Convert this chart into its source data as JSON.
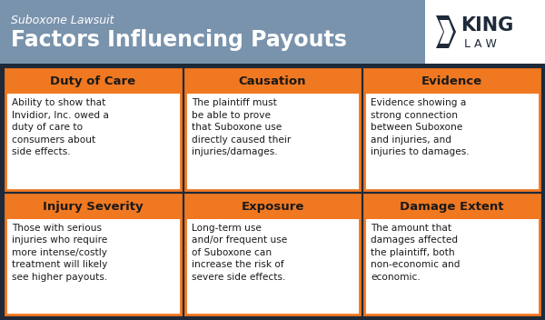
{
  "title_line1": "Suboxone Lawsuit",
  "title_line2": "Factors Influencing Payouts",
  "header_bg": "#7a93ad",
  "logo_bg": "#ffffff",
  "body_bg": "#1e2a3a",
  "card_bg": "#ffffff",
  "orange": "#f07820",
  "card_border": "#f07820",
  "title_color": "#ffffff",
  "card_title_color": "#1a1a1a",
  "card_text_color": "#1a1a1a",
  "logo_text_color": "#1e2a3a",
  "cells": [
    {
      "title": "Duty of Care",
      "text": "Ability to show that\nInvidior, Inc. owed a\nduty of care to\nconsumers about\nside effects."
    },
    {
      "title": "Causation",
      "text": "The plaintiff must\nbe able to prove\nthat Suboxone use\ndirectly caused their\ninjuries/damages."
    },
    {
      "title": "Evidence",
      "text": "Evidence showing a\nstrong connection\nbetween Suboxone\nand injuries, and\ninjuries to damages."
    },
    {
      "title": "Injury Severity",
      "text": "Those with serious\ninjuries who require\nmore intense/costly\ntreatment will likely\nsee higher payouts."
    },
    {
      "title": "Exposure",
      "text": "Long-term use\nand/or frequent use\nof Suboxone can\nincrease the risk of\nsevere side effects."
    },
    {
      "title": "Damage Extent",
      "text": "The amount that\ndamages affected\nthe plaintiff, both\nnon-economic and\neconomic."
    }
  ]
}
